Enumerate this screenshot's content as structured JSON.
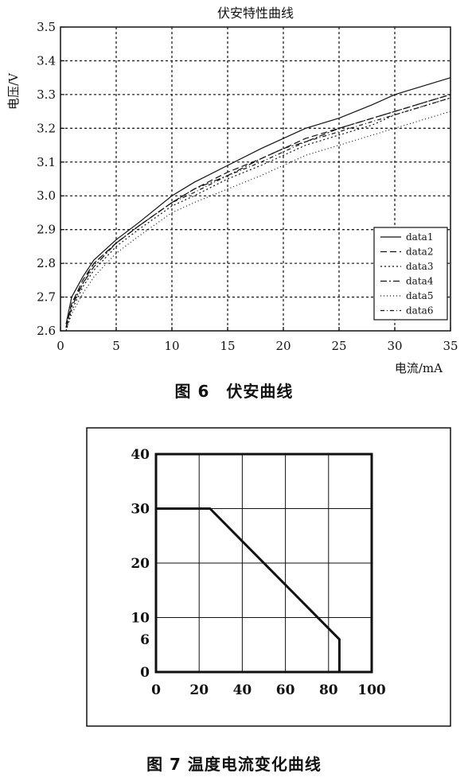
{
  "captions": {
    "fig6": "图 6　伏安曲线",
    "fig7": "图 7 温度电流变化曲线"
  },
  "chart_data": [
    {
      "type": "line",
      "title": "伏安特性曲线",
      "xlabel": "电流/mA",
      "ylabel": "电压/V",
      "xlim": [
        0,
        35
      ],
      "ylim": [
        2.6,
        3.5
      ],
      "xticks": [
        "0",
        "5",
        "10",
        "15",
        "20",
        "25",
        "30",
        "35"
      ],
      "yticks": [
        "2.6",
        "2.7",
        "2.8",
        "2.9",
        "3.0",
        "3.1",
        "3.2",
        "3.3",
        "3.4",
        "3.5"
      ],
      "grid": true,
      "legend": "bottom-right",
      "series": [
        {
          "name": "data1",
          "x": [
            0.5,
            1,
            2,
            3,
            5,
            7,
            10,
            12,
            15,
            18,
            20,
            22,
            25,
            28,
            30,
            32,
            35
          ],
          "y": [
            2.62,
            2.7,
            2.76,
            2.81,
            2.87,
            2.92,
            3.0,
            3.04,
            3.09,
            3.14,
            3.17,
            3.2,
            3.23,
            3.27,
            3.3,
            3.32,
            3.35
          ]
        },
        {
          "name": "data2",
          "x": [
            0.5,
            1,
            2,
            3,
            5,
            7,
            10,
            12,
            15,
            18,
            20,
            22,
            25,
            28,
            30,
            32,
            35
          ],
          "y": [
            2.61,
            2.68,
            2.75,
            2.8,
            2.86,
            2.91,
            2.98,
            3.02,
            3.07,
            3.11,
            3.14,
            3.17,
            3.2,
            3.23,
            3.25,
            3.27,
            3.3
          ]
        },
        {
          "name": "data3",
          "x": [
            0.5,
            1,
            2,
            3,
            5,
            7,
            10,
            12,
            15,
            18,
            20,
            22,
            25,
            28,
            30,
            32,
            35
          ],
          "y": [
            2.6,
            2.66,
            2.73,
            2.78,
            2.85,
            2.9,
            2.97,
            3.0,
            3.05,
            3.09,
            3.12,
            3.15,
            3.18,
            3.21,
            3.24,
            3.26,
            3.29
          ]
        },
        {
          "name": "data4",
          "x": [
            0.5,
            1,
            2,
            3,
            5,
            7,
            10,
            12,
            15,
            18,
            20,
            22,
            25,
            28,
            30,
            32,
            35
          ],
          "y": [
            2.61,
            2.67,
            2.74,
            2.79,
            2.86,
            2.91,
            2.98,
            3.02,
            3.06,
            3.11,
            3.14,
            3.16,
            3.2,
            3.23,
            3.25,
            3.27,
            3.3
          ]
        },
        {
          "name": "data5",
          "x": [
            0.5,
            1,
            2,
            3,
            5,
            7,
            10,
            12,
            15,
            18,
            20,
            22,
            25,
            28,
            30,
            32,
            35
          ],
          "y": [
            2.6,
            2.65,
            2.71,
            2.76,
            2.83,
            2.88,
            2.95,
            2.98,
            3.02,
            3.06,
            3.09,
            3.12,
            3.15,
            3.18,
            3.2,
            3.22,
            3.25
          ]
        },
        {
          "name": "data6",
          "x": [
            0.5,
            1,
            2,
            3,
            5,
            7,
            10,
            12,
            15,
            18,
            20,
            22,
            25,
            28,
            30,
            32,
            35
          ],
          "y": [
            2.61,
            2.68,
            2.74,
            2.8,
            2.86,
            2.91,
            2.98,
            3.01,
            3.06,
            3.1,
            3.13,
            3.16,
            3.19,
            3.22,
            3.24,
            3.26,
            3.29
          ]
        }
      ]
    },
    {
      "type": "line",
      "xlim": [
        0,
        100
      ],
      "ylim": [
        0,
        40
      ],
      "xticks": [
        "0",
        "20",
        "40",
        "60",
        "80",
        "100"
      ],
      "yticks": [
        "0",
        "6",
        "10",
        "20",
        "30",
        "40"
      ],
      "grid": true,
      "series": [
        {
          "x": [
            0,
            25,
            85,
            85
          ],
          "y": [
            30,
            30,
            6,
            0
          ]
        }
      ]
    }
  ]
}
